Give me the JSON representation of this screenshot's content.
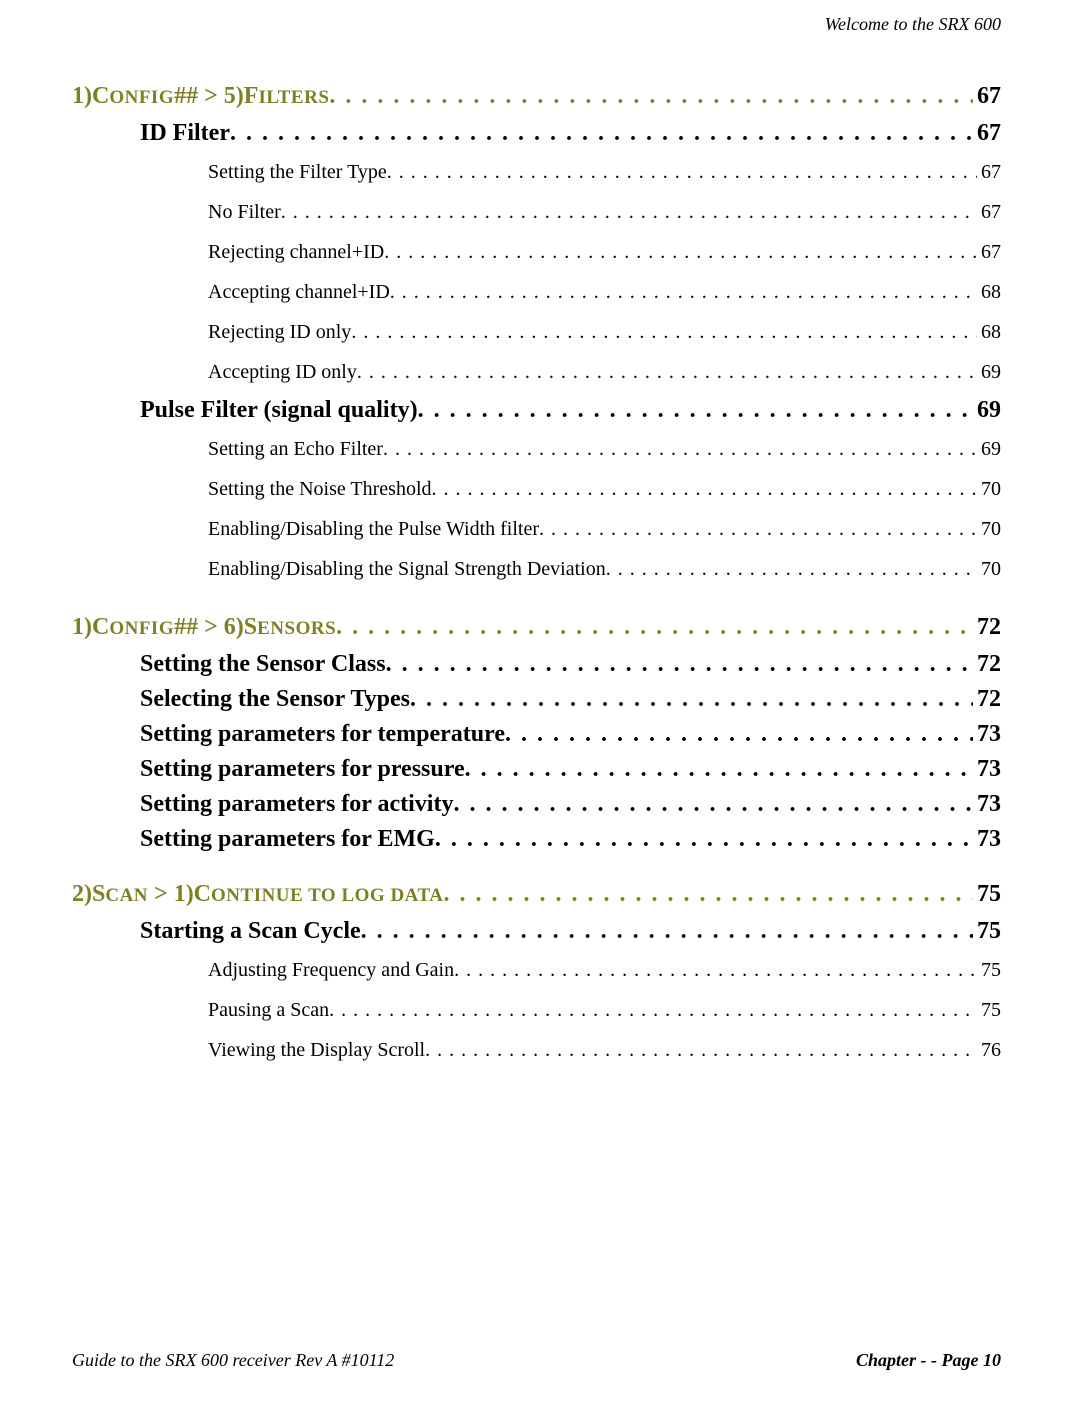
{
  "running_head": "Welcome to the SRX 600",
  "sections": [
    {
      "kind": "l1",
      "prefix_cap": "1)C",
      "prefix_low": "ONFIG",
      "mid": "## > 5)F",
      "mid_low": "ILTERS",
      "page": "67",
      "children": [
        {
          "kind": "l2",
          "label": "ID Filter",
          "page": "67",
          "children": [
            {
              "kind": "l3",
              "label": "Setting the Filter Type",
              "page": "67"
            },
            {
              "kind": "l3",
              "label": "No Filter",
              "page": "67"
            },
            {
              "kind": "l3",
              "label": "Rejecting channel+ID",
              "page": "67"
            },
            {
              "kind": "l3",
              "label": "Accepting channel+ID",
              "page": "68"
            },
            {
              "kind": "l3",
              "label": "Rejecting ID only",
              "page": "68"
            },
            {
              "kind": "l3",
              "label": "Accepting ID only",
              "page": "69"
            }
          ]
        },
        {
          "kind": "l2",
          "label": "Pulse Filter (signal quality)",
          "page": "69",
          "children": [
            {
              "kind": "l3",
              "label": "Setting an Echo Filter",
              "page": "69"
            },
            {
              "kind": "l3",
              "label": "Setting the Noise Threshold",
              "page": "70"
            },
            {
              "kind": "l3",
              "label": "Enabling/Disabling the Pulse Width filter",
              "page": "70"
            },
            {
              "kind": "l3",
              "label": "Enabling/Disabling the Signal Strength Deviation",
              "page": "70"
            }
          ]
        }
      ]
    },
    {
      "kind": "l1",
      "prefix_cap": "1)C",
      "prefix_low": "ONFIG",
      "mid": "## > 6)S",
      "mid_low": "ENSORS",
      "page": "72",
      "children": [
        {
          "kind": "l2",
          "label": "Setting the Sensor Class",
          "page": "72"
        },
        {
          "kind": "l2",
          "label": "Selecting the Sensor Types",
          "page": "72"
        },
        {
          "kind": "l2",
          "label": "Setting parameters for temperature",
          "page": "73"
        },
        {
          "kind": "l2",
          "label": "Setting parameters for pressure",
          "page": "73"
        },
        {
          "kind": "l2",
          "label": "Setting parameters for activity",
          "page": "73"
        },
        {
          "kind": "l2",
          "label": "Setting parameters for EMG",
          "page": "73"
        }
      ]
    },
    {
      "kind": "l1",
      "prefix_cap": "2)S",
      "prefix_low": "CAN",
      "mid": " > 1)C",
      "mid_low": "ONTINUE TO LOG DATA",
      "page": "75",
      "children": [
        {
          "kind": "l2",
          "label": "Starting a Scan Cycle",
          "page": "75",
          "children": [
            {
              "kind": "l3",
              "label": "Adjusting Frequency and Gain",
              "page": "75"
            },
            {
              "kind": "l3",
              "label": "Pausing a Scan",
              "page": "75"
            },
            {
              "kind": "l3",
              "label": "Viewing the Display Scroll",
              "page": "76"
            }
          ]
        }
      ]
    }
  ],
  "footer_left": "Guide to the SRX 600 receiver Rev A #10112",
  "footer_right_bold": "Chapter  - - Page 10",
  "colors": {
    "heading": "#7f7f24",
    "text": "#000000",
    "background": "#ffffff"
  },
  "typography": {
    "family": "Palatino Linotype",
    "l1_size_pt": 18,
    "l2_size_pt": 18,
    "l3_size_pt": 15,
    "footer_size_pt": 13.5
  }
}
